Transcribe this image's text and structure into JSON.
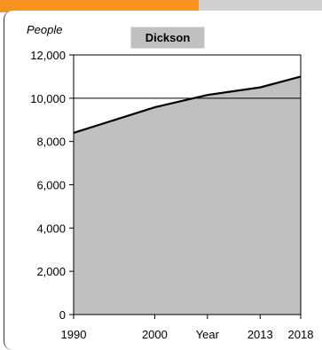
{
  "chart_data": {
    "type": "area",
    "title": "Dickson",
    "ylabel": "People",
    "xlabel": "",
    "categories": [
      "1990",
      "2000",
      "Year",
      "2013",
      "2018"
    ],
    "x": [
      1990,
      2000,
      2006.5,
      2013,
      2018
    ],
    "series": [
      {
        "values": [
          8400,
          9580,
          10150,
          10500,
          11000
        ]
      }
    ],
    "ylim": [
      0,
      12000
    ],
    "yticks": [
      0,
      2000,
      4000,
      6000,
      8000,
      10000,
      12000
    ],
    "ytick_labels": [
      "0",
      "2,000",
      "4,000",
      "6,000",
      "8,000",
      "10,000",
      "12,000"
    ],
    "reference_line": 10000,
    "fill_color": "#c0c0c0",
    "line_color": "#000000"
  }
}
